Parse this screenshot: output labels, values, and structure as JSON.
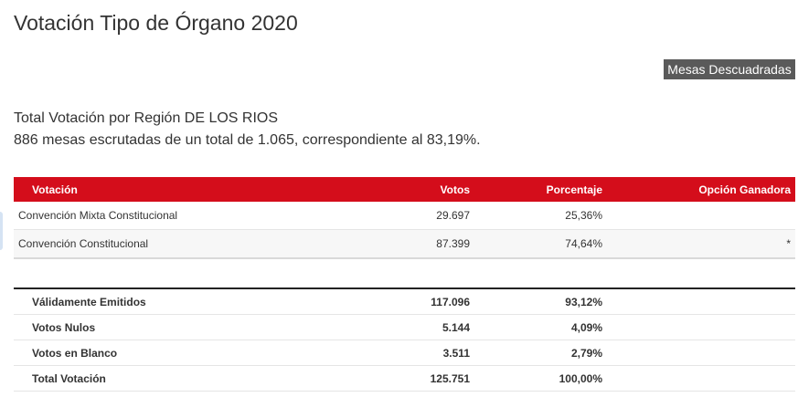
{
  "page": {
    "title": "Votación Tipo de Órgano 2020",
    "mesas_button": "Mesas Descuadradas",
    "summary_line1": "Total Votación por Región DE LOS RIOS",
    "summary_line2": "886 mesas escrutadas de un total de 1.065, correspondiente al 83,19%."
  },
  "results": {
    "headers": [
      "Votación",
      "Votos",
      "Porcentaje",
      "Opción Ganadora"
    ],
    "rows": [
      {
        "name": "Convención Mixta Constitucional",
        "votos": "29.697",
        "pct": "25,36%",
        "ganadora": ""
      },
      {
        "name": "Convención Constitucional",
        "votos": "87.399",
        "pct": "74,64%",
        "ganadora": "*"
      }
    ]
  },
  "totals": {
    "rows": [
      {
        "name": "Válidamente Emitidos",
        "votos": "117.096",
        "pct": "93,12%"
      },
      {
        "name": "Votos Nulos",
        "votos": "5.144",
        "pct": "4,09%"
      },
      {
        "name": "Votos en Blanco",
        "votos": "3.511",
        "pct": "2,79%"
      },
      {
        "name": "Total Votación",
        "votos": "125.751",
        "pct": "100,00%"
      }
    ]
  },
  "colors": {
    "header_red": "#d40d1b",
    "button_gray": "#5a5a5a"
  }
}
